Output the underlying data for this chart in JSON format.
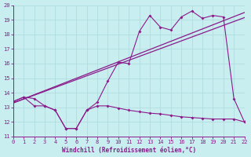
{
  "xlabel": "Windchill (Refroidissement éolien,°C)",
  "xlim": [
    0,
    22
  ],
  "ylim": [
    11,
    20
  ],
  "yticks": [
    11,
    12,
    13,
    14,
    15,
    16,
    17,
    18,
    19,
    20
  ],
  "xticks": [
    0,
    1,
    2,
    3,
    4,
    5,
    6,
    7,
    8,
    9,
    10,
    11,
    12,
    13,
    14,
    15,
    16,
    17,
    18,
    19,
    20,
    21,
    22
  ],
  "bg_color": "#c8eef0",
  "grid_color": "#b0dde0",
  "line_color": "#8b1a8b",
  "series1_x": [
    0,
    1,
    2,
    3,
    4,
    5,
    6,
    7,
    8,
    9,
    10,
    11,
    12,
    13,
    14,
    15,
    16,
    17,
    18,
    19,
    20,
    21,
    22
  ],
  "series1_y": [
    13.4,
    13.7,
    13.6,
    13.1,
    12.8,
    11.55,
    11.55,
    12.8,
    13.35,
    14.8,
    16.1,
    16.0,
    18.2,
    19.3,
    18.5,
    18.3,
    19.2,
    19.6,
    19.1,
    19.3,
    19.2,
    13.6,
    12.0
  ],
  "series2_x": [
    0,
    1,
    2,
    3,
    4,
    5,
    6,
    7,
    8,
    9,
    10,
    11,
    12,
    13,
    14,
    15,
    16,
    17,
    18,
    19,
    20,
    21,
    22
  ],
  "series2_y": [
    13.4,
    13.7,
    13.1,
    13.1,
    12.8,
    11.55,
    11.55,
    12.8,
    13.1,
    13.1,
    12.95,
    12.8,
    12.7,
    12.6,
    12.55,
    12.45,
    12.35,
    12.3,
    12.25,
    12.2,
    12.2,
    12.2,
    12.0
  ],
  "series3_x": [
    0,
    22
  ],
  "series3_y": [
    13.3,
    19.15
  ],
  "series4_x": [
    0,
    22
  ],
  "series4_y": [
    13.3,
    19.5
  ]
}
